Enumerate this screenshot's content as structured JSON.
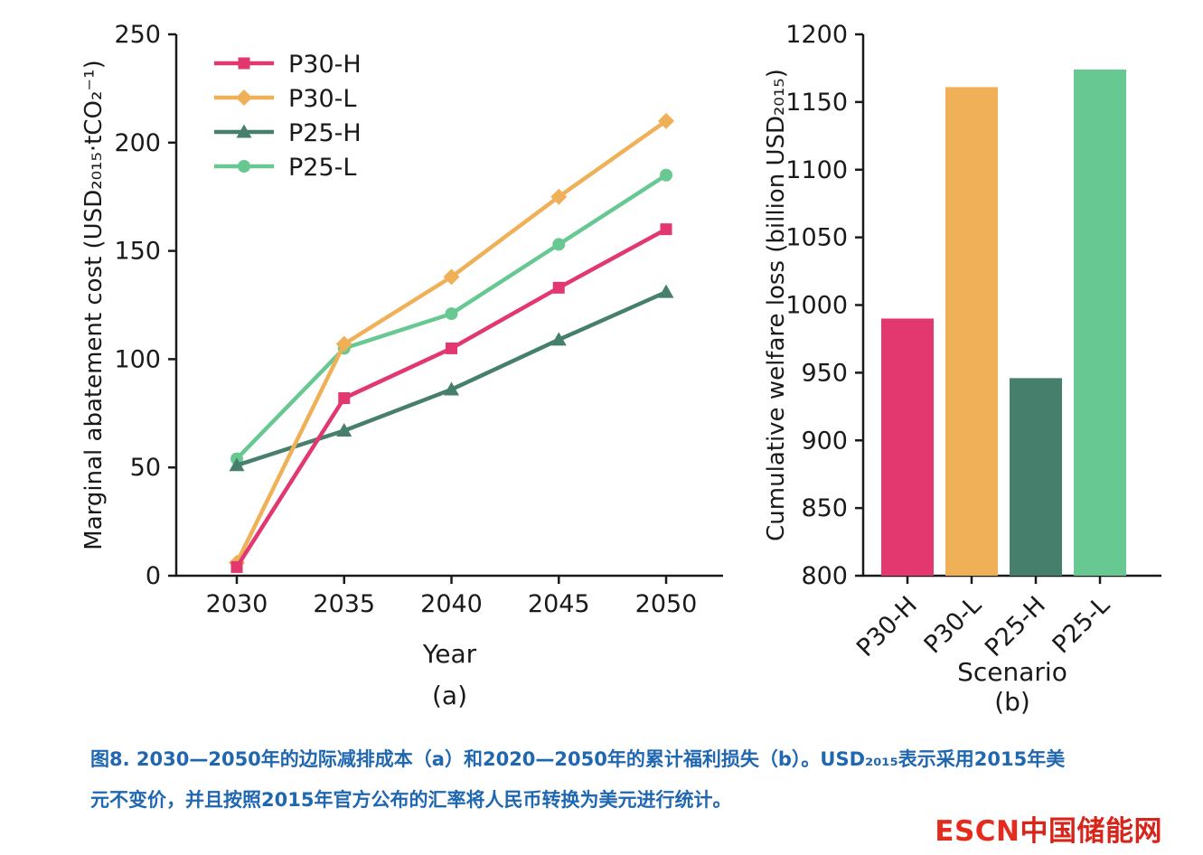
{
  "colors": {
    "p30h": "#e2386f",
    "p30l": "#f0b057",
    "p25h": "#477f6d",
    "p25l": "#68c892",
    "axis": "#1a1a1a",
    "caption_blue": "#1f67b0",
    "logo_red": "#e52b1e"
  },
  "chart_data": [
    {
      "type": "line",
      "title": "",
      "xlabel": "Year",
      "ylabel": "Marginal abatement cost (USD₂₀₁₅·tCO₂⁻¹)",
      "panel_label": "(a)",
      "x": [
        2030,
        2035,
        2040,
        2045,
        2050
      ],
      "ylim": [
        0,
        250
      ],
      "yticks": [
        0,
        50,
        100,
        150,
        200,
        250
      ],
      "legend_position": "top-left",
      "grid": false,
      "series": [
        {
          "name": "P30-H",
          "marker": "square",
          "color_key": "p30h",
          "values": [
            4,
            82,
            105,
            133,
            160
          ]
        },
        {
          "name": "P30-L",
          "marker": "diamond",
          "color_key": "p30l",
          "values": [
            6,
            107,
            138,
            175,
            210
          ]
        },
        {
          "name": "P25-H",
          "marker": "triangle",
          "color_key": "p25h",
          "values": [
            51,
            67,
            86,
            109,
            131
          ]
        },
        {
          "name": "P25-L",
          "marker": "circle",
          "color_key": "p25l",
          "values": [
            54,
            105,
            121,
            153,
            185
          ]
        }
      ]
    },
    {
      "type": "bar",
      "title": "",
      "xlabel": "Scenario",
      "ylabel": "Cumulative welfare loss (billion USD₂₀₁₅)",
      "panel_label": "(b)",
      "categories": [
        "P30-H",
        "P30-L",
        "P25-H",
        "P25-L"
      ],
      "values": [
        990,
        1161,
        946,
        1174
      ],
      "color_keys": [
        "p30h",
        "p30l",
        "p25h",
        "p25l"
      ],
      "ylim": [
        800,
        1200
      ],
      "yticks": [
        800,
        850,
        900,
        950,
        1000,
        1050,
        1100,
        1150,
        1200
      ],
      "grid": false
    }
  ],
  "caption": {
    "line1": "图8. 2030—2050年的边际减排成本（a）和2020—2050年的累计福利损失（b）。USD₂₀₁₅表示采用2015年美",
    "line2": "元不变价，并且按照2015年官方公布的汇率将人民币转换为美元进行统计。"
  },
  "logo": {
    "latin": "ESCN",
    "cjk": "中国储能网"
  }
}
